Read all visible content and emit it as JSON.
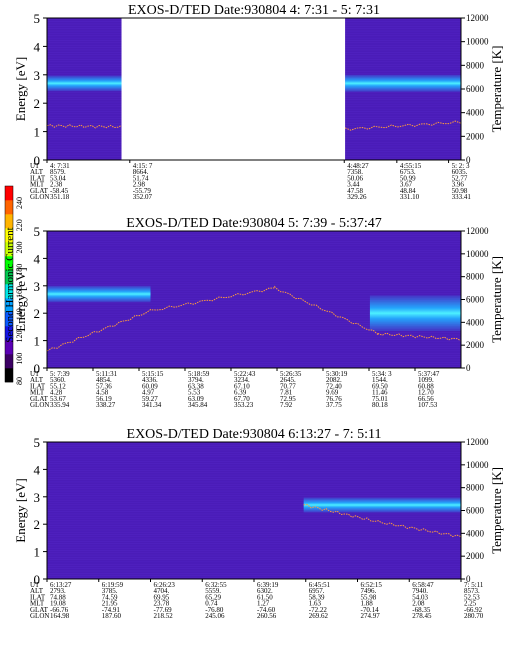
{
  "chart_data": [
    {
      "type": "heatmap",
      "title": "EXOS-D/TED   Date:930804  4: 7:31 - 5: 7:31",
      "ylabel": "Energy [eV]",
      "y2label": "Temperature [K]",
      "ylim": [
        0,
        5
      ],
      "yticks": [
        "0",
        "1",
        "2",
        "3",
        "4",
        "5"
      ],
      "y2lim": [
        0,
        12000
      ],
      "y2ticks": [
        "0",
        "2000",
        "4000",
        "6000",
        "8000",
        "10000",
        "12000"
      ],
      "data_gap": [
        0.18,
        0.72
      ],
      "bands": [
        {
          "x0": 0.0,
          "x1": 0.18,
          "e": 2.7,
          "w": 0.55
        },
        {
          "x0": 0.72,
          "x1": 1.0,
          "e": 2.7,
          "w": 0.6
        }
      ],
      "temperature_trace": [
        {
          "x": 0.0,
          "t": 2900
        },
        {
          "x": 0.18,
          "t": 2800
        },
        {
          "x": 0.72,
          "t": 2600
        },
        {
          "x": 1.0,
          "t": 3200
        }
      ],
      "orbit_table": {
        "rows": [
          "UT",
          "ALT",
          "ILAT",
          "MLT",
          "GLAT",
          "GLON"
        ],
        "columns": [
          {
            "x": 0.0,
            "values": [
              "4: 7:31",
              "8579.",
              "53.04",
              "2.38",
              "-58.45",
              "351.18"
            ]
          },
          {
            "x": 0.2,
            "values": [
              "4:15: 7",
              "8664.",
              "51.74",
              "2.98",
              "-55.79",
              "352.07"
            ]
          },
          {
            "x": 0.718,
            "values": [
              "4:48:27",
              "7358.",
              "50.06",
              "3.44",
              "47.58",
              "329.26"
            ]
          },
          {
            "x": 0.845,
            "values": [
              "4:55:15",
              "6753.",
              "50.99",
              "3.67",
              "48.84",
              "331.10"
            ]
          },
          {
            "x": 0.97,
            "values": [
              "5: 2: 3",
              "6035.",
              "52.77",
              "3.96",
              "50.98",
              "333.41"
            ]
          }
        ]
      }
    },
    {
      "type": "heatmap",
      "title": "EXOS-D/TED   Date:930804  5: 7:39 - 5:37:47",
      "ylabel": "Energy [eV]",
      "y2label": "Temperature [K]",
      "ylim": [
        0,
        5
      ],
      "yticks": [
        "0",
        "1",
        "2",
        "3",
        "4",
        "5"
      ],
      "y2lim": [
        0,
        12000
      ],
      "y2ticks": [
        "0",
        "2000",
        "4000",
        "6000",
        "8000",
        "10000",
        "12000"
      ],
      "bands": [
        {
          "x0": 0.0,
          "x1": 0.25,
          "e": 2.7,
          "w": 0.6
        },
        {
          "x0": 0.78,
          "x1": 1.0,
          "e": 2.0,
          "w": 1.3
        }
      ],
      "temperature_trace": [
        {
          "x": 0.0,
          "t": 1500
        },
        {
          "x": 0.25,
          "t": 5000
        },
        {
          "x": 0.55,
          "t": 7000
        },
        {
          "x": 0.8,
          "t": 3000
        },
        {
          "x": 1.0,
          "t": 2500
        }
      ],
      "orbit_table": {
        "rows": [
          "UT",
          "ALT",
          "ILAT",
          "MLT",
          "GLAT",
          "GLON"
        ],
        "columns": [
          {
            "x": 0.0,
            "values": [
              "5: 7:39",
              "5360.",
              "55.12",
              "4.28",
              "53.67",
              "335.94"
            ]
          },
          {
            "x": 0.1111,
            "values": [
              "5:11:31",
              "4854.",
              "57.36",
              "4.58",
              "56.19",
              "338.27"
            ]
          },
          {
            "x": 0.2222,
            "values": [
              "5:15:15",
              "4336.",
              "60.09",
              "4.97",
              "59.27",
              "341.34"
            ]
          },
          {
            "x": 0.3333,
            "values": [
              "5:18:59",
              "3794.",
              "63.38",
              "5.53",
              "63.09",
              "345.84"
            ]
          },
          {
            "x": 0.4444,
            "values": [
              "5:22:43",
              "3234.",
              "67.10",
              "6.39",
              "67.70",
              "353.23"
            ]
          },
          {
            "x": 0.5556,
            "values": [
              "5:26:35",
              "2645.",
              "70.77",
              "7.81",
              "72.95",
              "7.92"
            ]
          },
          {
            "x": 0.6667,
            "values": [
              "5:30:19",
              "2082.",
              "72.40",
              "9.69",
              "76.76",
              "37.75"
            ]
          },
          {
            "x": 0.7778,
            "values": [
              "5:34: 3",
              "1544.",
              "69.50",
              "11.46",
              "75.01",
              "80.18"
            ]
          },
          {
            "x": 0.8889,
            "values": [
              "5:37:47",
              "1099.",
              "60.88",
              "12.70",
              "66.56",
              "107.53"
            ]
          }
        ]
      }
    },
    {
      "type": "heatmap",
      "title": "EXOS-D/TED   Date:930804  6:13:27 - 7: 5:11",
      "ylabel": "Energy [eV]",
      "y2label": "Temperature [K]",
      "ylim": [
        0,
        5
      ],
      "yticks": [
        "0",
        "1",
        "2",
        "3",
        "4",
        "5"
      ],
      "y2lim": [
        0,
        12000
      ],
      "y2ticks": [
        "0",
        "2000",
        "4000",
        "6000",
        "8000",
        "10000",
        "12000"
      ],
      "bands": [
        {
          "x0": 0.62,
          "x1": 1.0,
          "e": 2.7,
          "w": 0.55
        }
      ],
      "temperature_trace": [
        {
          "x": 0.62,
          "t": 6500
        },
        {
          "x": 0.8,
          "t": 5000
        },
        {
          "x": 1.0,
          "t": 3700
        }
      ],
      "orbit_table": {
        "rows": [
          "UT",
          "ALT",
          "ILAT",
          "MLT",
          "GLAT",
          "GLON"
        ],
        "columns": [
          {
            "x": 0.0,
            "values": [
              "6:13:27",
              "2793.",
              "74.88",
              "19.08",
              "-66.76",
              "164.98"
            ]
          },
          {
            "x": 0.125,
            "values": [
              "6:19:59",
              "3785.",
              "74.59",
              "21.95",
              "-74.91",
              "187.60"
            ]
          },
          {
            "x": 0.25,
            "values": [
              "6:26:23",
              "4704.",
              "69.95",
              "23.78",
              "-77.69",
              "218.52"
            ]
          },
          {
            "x": 0.375,
            "values": [
              "6:32:55",
              "5559.",
              "65.29",
              "0.74",
              "-76.80",
              "245.06"
            ]
          },
          {
            "x": 0.5,
            "values": [
              "6:39:19",
              "6302.",
              "61.50",
              "1.27",
              "-74.60",
              "260.56"
            ]
          },
          {
            "x": 0.625,
            "values": [
              "6:45:51",
              "6957.",
              "58.39",
              "1.63",
              "-72.22",
              "269.62"
            ]
          },
          {
            "x": 0.75,
            "values": [
              "6:52:15",
              "7496.",
              "55.98",
              "1.88",
              "-70.14",
              "274.97"
            ]
          },
          {
            "x": 0.875,
            "values": [
              "6:58:47",
              "7940.",
              "54.03",
              "2.08",
              "-68.35",
              "278.45"
            ]
          },
          {
            "x": 1.0,
            "values": [
              "7: 5:11",
              "8573.",
              "52.53",
              "2.25",
              "-66.92",
              "280.70"
            ]
          }
        ]
      }
    }
  ],
  "colorbar": {
    "label": "Second Harmonic Current",
    "ticks": [
      "80",
      "100",
      "120",
      "140",
      "160",
      "180",
      "200",
      "220",
      "240"
    ],
    "colors": [
      "#000000",
      "#3c0064",
      "#5a00b4",
      "#1414e6",
      "#0a5aff",
      "#00a0ff",
      "#00e6e6",
      "#00c850",
      "#00ff00",
      "#c8ff00",
      "#ffff00",
      "#ffb400",
      "#ff6400",
      "#ff0000"
    ]
  },
  "colors": {
    "background": "#4a1cb8",
    "grid": "#5a2ad0",
    "band": "#22aaff",
    "band_core": "#4df0ff",
    "trace": "#ff9a3c"
  }
}
